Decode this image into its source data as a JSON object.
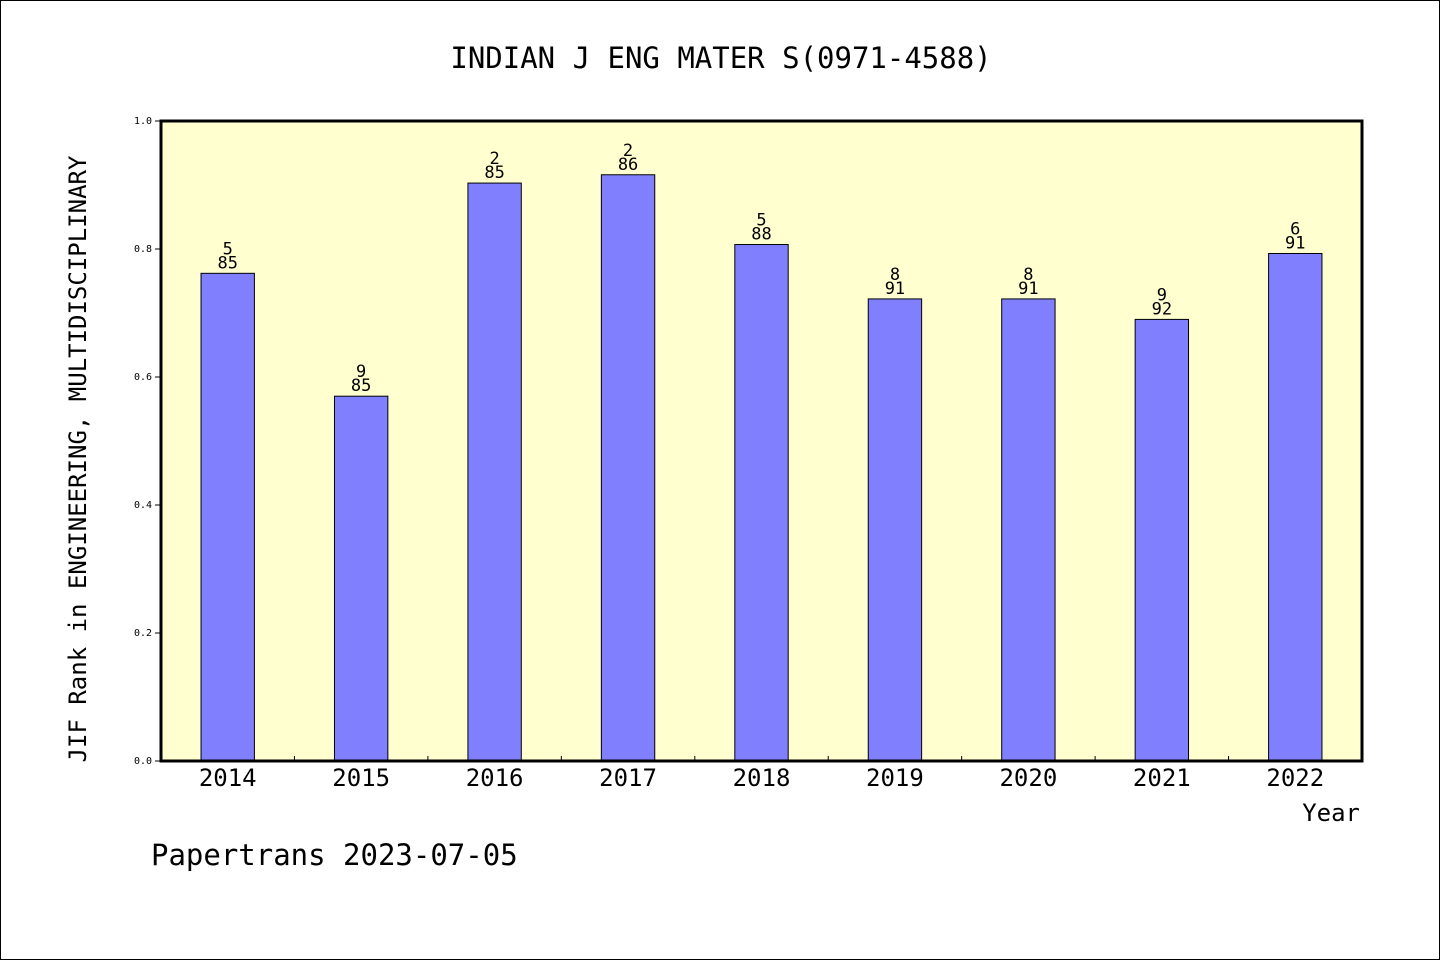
{
  "chart_data": {
    "type": "bar",
    "title": "INDIAN J ENG MATER S(0971-4588)",
    "xlabel": "Year",
    "ylabel": "JIF Rank in ENGINEERING, MULTIDISCIPLINARY",
    "ylim": [
      0,
      1.0
    ],
    "yticks": [
      "0.0",
      "0.2",
      "0.4",
      "0.6",
      "0.8",
      "1.0"
    ],
    "categories": [
      "2014",
      "2015",
      "2016",
      "2017",
      "2018",
      "2019",
      "2020",
      "2021",
      "2022"
    ],
    "values": [
      0.762,
      0.57,
      0.903,
      0.916,
      0.807,
      0.722,
      0.722,
      0.69,
      0.793
    ],
    "labels": [
      {
        "rank": "5",
        "total": "85"
      },
      {
        "rank": "9",
        "total": "85"
      },
      {
        "rank": "2",
        "total": "85"
      },
      {
        "rank": "2",
        "total": "86"
      },
      {
        "rank": "5",
        "total": "88"
      },
      {
        "rank": "8",
        "total": "91"
      },
      {
        "rank": "8",
        "total": "91"
      },
      {
        "rank": "9",
        "total": "92"
      },
      {
        "rank": "6",
        "total": "91"
      }
    ],
    "colors": {
      "bar": "#8080ff",
      "plot_background": "#ffffd0",
      "bar_edge": "#000000"
    },
    "grid": false,
    "legend": "none"
  },
  "footer": "Papertrans 2023-07-05"
}
